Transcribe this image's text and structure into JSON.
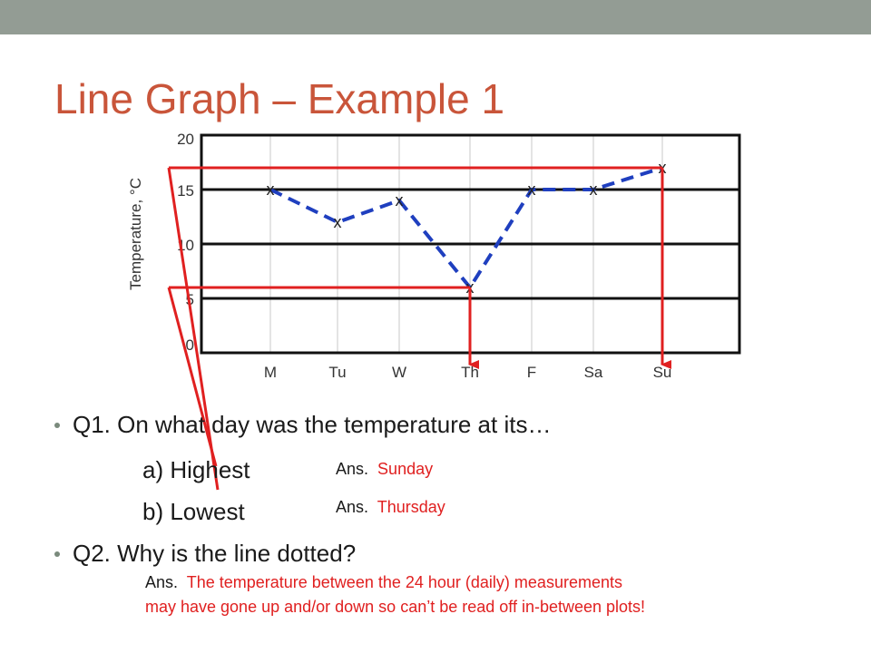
{
  "slide": {
    "title": "Line Graph – Example 1",
    "q1": "Q1.  On what day was the temperature at its…",
    "q1a": "a) Highest",
    "q1b": "b) Lowest",
    "ans_prefix": "Ans.",
    "ans_a": "Sunday",
    "ans_b": "Thursday",
    "q2": "Q2.  Why is the line dotted?",
    "ans_q2_line1": "The temperature between the 24 hour (daily) measurements",
    "ans_q2_line2": "may have gone up and/or down so can’t be read off in-between plots!"
  },
  "chart_data": {
    "type": "line",
    "title": "",
    "xlabel": "",
    "ylabel": "Temperature, °C",
    "categories": [
      "M",
      "Tu",
      "W",
      "Th",
      "F",
      "Sa",
      "Su"
    ],
    "series": [
      {
        "values": [
          15,
          12,
          14,
          6,
          15,
          15,
          17
        ]
      }
    ],
    "ylim": [
      0,
      20
    ],
    "yticks": [
      0,
      5,
      10,
      15,
      20
    ],
    "grid": "horizontal and vertical",
    "line_style": "dashed",
    "marker": "x",
    "annotations": [
      {
        "label": "highest",
        "category": "Su",
        "value": 17
      },
      {
        "label": "lowest",
        "category": "Th",
        "value": 6
      }
    ],
    "colors": {
      "series": "#1f3fbf",
      "annotation": "#e02020"
    }
  }
}
